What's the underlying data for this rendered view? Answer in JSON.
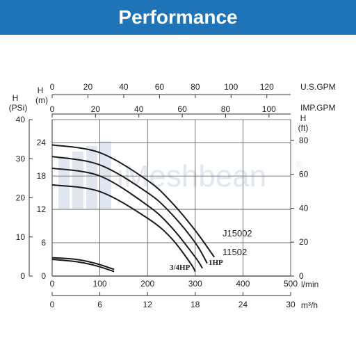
{
  "header": {
    "title": "Performance"
  },
  "watermark": "iMeshbean",
  "watermark_mark": "®",
  "colors": {
    "header_bg": "#1f74b8",
    "curve": "#1a1a1a",
    "grid": "#555555",
    "watermark": "#c8d4e4"
  },
  "chart_data": {
    "type": "line",
    "grid": true,
    "axes": {
      "usgpm": {
        "label": "U.S.GPM",
        "ticks": [
          0,
          20,
          40,
          60,
          80,
          100,
          120
        ],
        "range": [
          0,
          133.3
        ]
      },
      "impgpm": {
        "label": "IMP.GPM",
        "ticks": [
          0,
          20,
          40,
          60,
          80,
          100
        ],
        "range": [
          0,
          110
        ]
      },
      "lmin": {
        "label": "l/min",
        "ticks": [
          0,
          100,
          200,
          300,
          400,
          500
        ],
        "range": [
          0,
          500
        ]
      },
      "m3h": {
        "label": "m³/h",
        "ticks": [
          0,
          6,
          12,
          18,
          24,
          30
        ],
        "range": [
          0,
          30
        ]
      },
      "psi": {
        "label_top": "H",
        "label_bottom": "(PSi)",
        "ticks": [
          0,
          10,
          20,
          30,
          40
        ],
        "range": [
          0,
          40
        ]
      },
      "m": {
        "label_top": "H",
        "label_bottom": "(m)",
        "ticks": [
          0,
          6,
          12,
          18,
          24
        ],
        "range": [
          0,
          28.15
        ]
      },
      "ft": {
        "label_top": "H",
        "label_bottom": "(ft)",
        "ticks": [
          0,
          20,
          40,
          60,
          80
        ],
        "range": [
          0,
          92.3
        ]
      }
    },
    "series": [
      {
        "name": "J15002",
        "x_lmin": [
          0,
          100,
          200,
          250,
          300,
          340
        ],
        "y_m": [
          23.6,
          22.2,
          17.2,
          13.3,
          8.2,
          3.4
        ]
      },
      {
        "name": "11502",
        "x_lmin": [
          0,
          100,
          200,
          250,
          300,
          325
        ],
        "y_m": [
          21.5,
          20.0,
          15.0,
          11.2,
          6.0,
          2.3
        ]
      },
      {
        "name": "1HP",
        "x_lmin": [
          0,
          100,
          200,
          250,
          300,
          315
        ],
        "y_m": [
          19.4,
          18.0,
          12.7,
          8.8,
          3.4,
          1.4
        ]
      },
      {
        "name": "3/4HP",
        "x_lmin": [
          0,
          100,
          200,
          250,
          290,
          300
        ],
        "y_m": [
          16.4,
          15.2,
          10.4,
          6.8,
          2.3,
          0.8
        ]
      },
      {
        "name": "",
        "x_lmin": [
          0,
          50,
          90,
          130
        ],
        "y_m": [
          3.3,
          3.0,
          2.3,
          1.2
        ]
      },
      {
        "name": "",
        "x_lmin": [
          0,
          50,
          90,
          130
        ],
        "y_m": [
          3.0,
          2.6,
          1.9,
          0.8
        ]
      }
    ]
  }
}
